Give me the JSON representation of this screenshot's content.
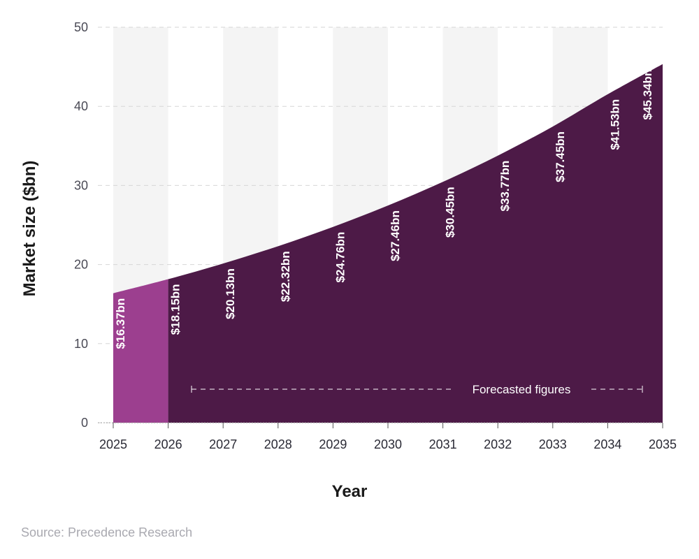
{
  "chart_data": {
    "type": "area",
    "x": [
      2025,
      2026,
      2027,
      2028,
      2029,
      2030,
      2031,
      2032,
      2033,
      2034,
      2035
    ],
    "categories": [
      "2025",
      "2026",
      "2027",
      "2028",
      "2029",
      "2030",
      "2031",
      "2032",
      "2033",
      "2034",
      "2035"
    ],
    "values": [
      16.37,
      18.15,
      20.13,
      22.32,
      24.76,
      27.46,
      30.45,
      33.77,
      37.45,
      41.53,
      45.34
    ],
    "data_labels": [
      "$16.37bn",
      "$18.15bn",
      "$20.13bn",
      "$22.32bn",
      "$24.76bn",
      "$27.46bn",
      "$30.45bn",
      "$33.77bn",
      "$37.45bn",
      "$41.53bn",
      "$45.34bn"
    ],
    "xlabel": "Year",
    "ylabel": "Market size ($bn)",
    "ylim": [
      0,
      50
    ],
    "yticks": [
      0,
      10,
      20,
      30,
      40,
      50
    ],
    "grid": true,
    "forecast_annotation": "Forecasted figures",
    "forecast_start": 2026,
    "colors": {
      "actual": "#9c3f8f",
      "forecast": "#4d1a47",
      "band": "#f4f4f4",
      "grid": "#d6d6d6"
    }
  },
  "footer": {
    "source": "Source: Precedence Research"
  }
}
